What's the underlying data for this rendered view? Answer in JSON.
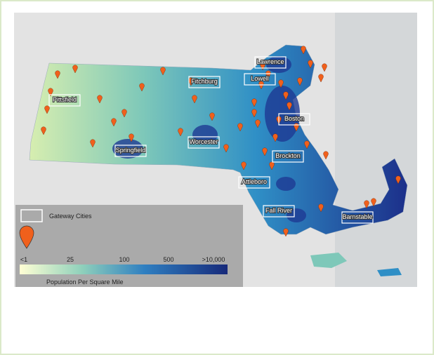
{
  "map": {
    "cities": [
      "Lawrence",
      "Lowell",
      "Fitchburg",
      "Pittsfield",
      "Boston",
      "Worcester",
      "Springfield",
      "Brockton",
      "Attleboro",
      "Fall River",
      "Barnstable"
    ],
    "legend": {
      "gateway_label": "Gateway Cities",
      "scale_labels": [
        "<1",
        "25",
        "100",
        "500",
        ">10,000"
      ],
      "scale_title": "Population Per Square Mile"
    }
  }
}
